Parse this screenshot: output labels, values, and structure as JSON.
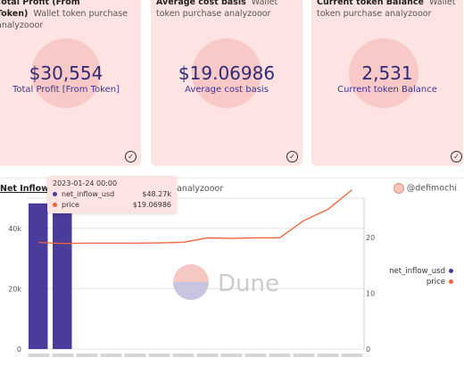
{
  "cards": [
    {
      "title": "Total Profit (From Token)",
      "subtitle": "Wallet token purchase analyzooor",
      "value": "$30,554",
      "label": "Total Profit [From Token]"
    },
    {
      "title": "Average cost basis",
      "subtitle": "Wallet token purchase analyzooor",
      "value": "$19.06986",
      "label": "Average cost basis"
    },
    {
      "title": "Current token Balance",
      "subtitle": "Wallet token purchase analyzooor",
      "value": "2,531",
      "label": "Current token Balance"
    }
  ],
  "chart": {
    "title": "Net Inflow again",
    "subtitle": "analyzooor",
    "attribution": "@defimochi",
    "watermark": "Dune"
  },
  "tooltip": {
    "date": "2023-01-24 00:00",
    "rows": [
      {
        "name": "net_inflow_usd",
        "value": "$48.27k",
        "color": "#4b3b9a"
      },
      {
        "name": "price",
        "value": "$19.06986",
        "color": "#f0643c"
      }
    ]
  },
  "legend": [
    {
      "name": "net_inflow_usd",
      "color": "#4b3b9a"
    },
    {
      "name": "price",
      "color": "#f0643c"
    }
  ],
  "chart_data": {
    "type": "bar",
    "series": [
      {
        "name": "net_inflow_usd",
        "type": "bar",
        "axis": "left",
        "color": "#4b3b9a",
        "values": [
          48270,
          48270,
          0,
          0,
          0,
          0,
          0,
          0,
          0,
          0,
          0,
          0,
          0,
          0
        ]
      },
      {
        "name": "price",
        "type": "line",
        "axis": "right",
        "color": "#f0643c",
        "values": [
          19.07,
          18.9,
          18.95,
          18.95,
          18.95,
          19.0,
          19.1,
          19.9,
          19.8,
          19.9,
          19.9,
          23.0,
          25.0,
          28.5
        ]
      }
    ],
    "left_ticks": [
      "40k",
      "20k",
      "0"
    ],
    "left_tick_values": [
      40000,
      20000,
      0
    ],
    "right_ticks": [
      "20",
      "10",
      "0"
    ],
    "right_tick_values": [
      20,
      10,
      0
    ],
    "ylim_left": [
      0,
      50000
    ],
    "ylim_right": [
      0,
      27
    ]
  }
}
